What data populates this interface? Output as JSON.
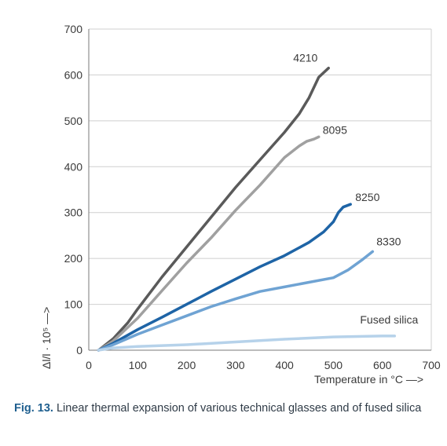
{
  "chart_data": {
    "type": "line",
    "xlabel": "Temperature in °C —>",
    "ylabel": "Δl/l · 10⁵ —>",
    "xlim": [
      0,
      700
    ],
    "ylim": [
      0,
      700
    ],
    "xticks": [
      0,
      100,
      200,
      300,
      400,
      500,
      600,
      700
    ],
    "yticks": [
      0,
      100,
      200,
      300,
      400,
      500,
      600,
      700
    ],
    "grid": "horizontal",
    "series": [
      {
        "name": "4210",
        "color": "#5a5a5a",
        "x": [
          20,
          50,
          80,
          100,
          150,
          200,
          250,
          300,
          350,
          400,
          430,
          450,
          470,
          490
        ],
        "y": [
          0,
          25,
          60,
          90,
          160,
          225,
          290,
          355,
          415,
          475,
          515,
          550,
          595,
          615
        ]
      },
      {
        "name": "8095",
        "color": "#a0a0a0",
        "x": [
          20,
          50,
          70,
          100,
          150,
          200,
          250,
          300,
          350,
          400,
          430,
          445,
          460,
          470
        ],
        "y": [
          0,
          20,
          40,
          70,
          130,
          190,
          245,
          305,
          360,
          420,
          445,
          455,
          460,
          465
        ]
      },
      {
        "name": "8250",
        "color": "#1e64a6",
        "x": [
          20,
          50,
          100,
          150,
          200,
          250,
          300,
          350,
          400,
          450,
          480,
          500,
          510,
          520,
          535
        ],
        "y": [
          0,
          15,
          45,
          72,
          100,
          128,
          155,
          182,
          206,
          235,
          258,
          280,
          300,
          312,
          318
        ]
      },
      {
        "name": "8330",
        "color": "#6fa3d3",
        "x": [
          20,
          50,
          100,
          150,
          200,
          250,
          300,
          350,
          400,
          450,
          500,
          530,
          560,
          580
        ],
        "y": [
          0,
          12,
          35,
          55,
          75,
          95,
          112,
          128,
          138,
          148,
          158,
          175,
          198,
          215
        ]
      },
      {
        "name": "Fused silica",
        "color": "#b6d2ea",
        "x": [
          20,
          50,
          100,
          200,
          300,
          400,
          500,
          600,
          625
        ],
        "y": [
          0,
          5,
          8,
          12,
          18,
          24,
          29,
          31,
          31
        ]
      }
    ]
  },
  "caption": {
    "figure_number": "Fig. 13.",
    "text": " Linear thermal expansion of various technical glasses and of fused silica"
  }
}
